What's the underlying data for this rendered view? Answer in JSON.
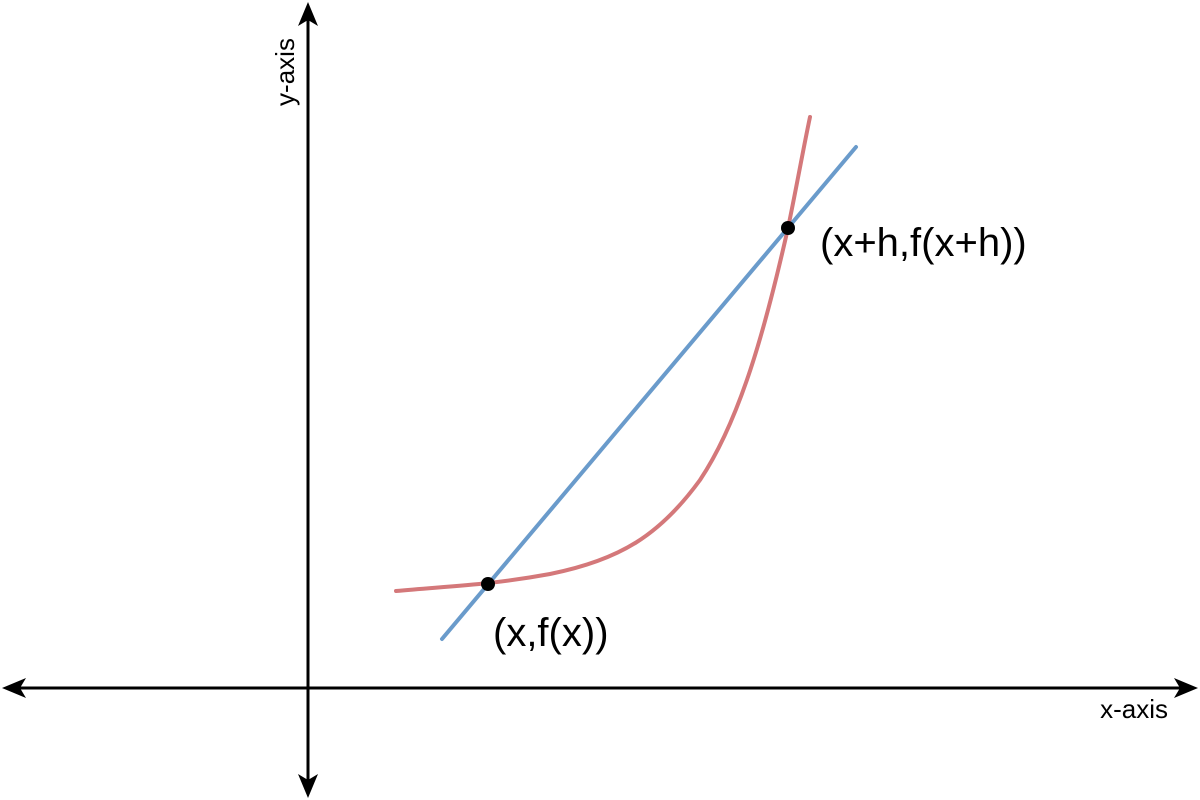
{
  "axes": {
    "x_label": "x-axis",
    "y_label": "y-axis"
  },
  "points": {
    "lower_label": "(x,f(x))",
    "upper_label": "(x+h,f(x+h))"
  },
  "colors": {
    "curve": "#D4787A",
    "secant": "#6A9BCB",
    "axes": "#000000",
    "points": "#000000"
  }
}
